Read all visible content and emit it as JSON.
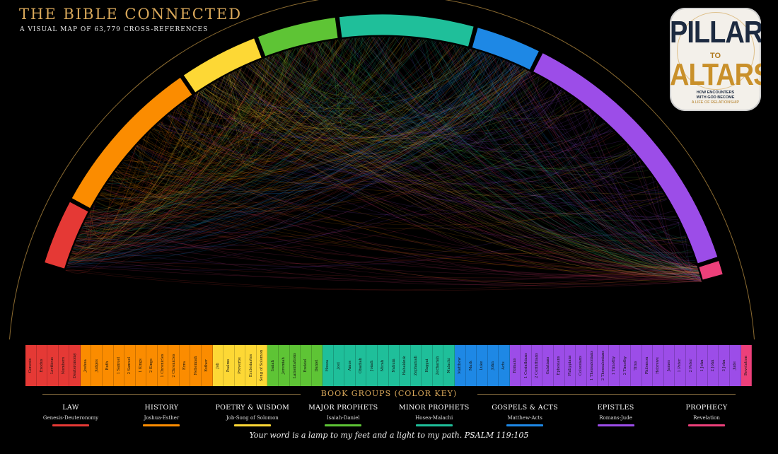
{
  "header": {
    "title": "THE BIBLE CONNECTED",
    "subtitle": "A VISUAL MAP OF 63,779 CROSS-REFERENCES"
  },
  "logo": {
    "line1": "PILLARS",
    "line2": "TO",
    "line3": "ALTARS",
    "tag1": "HOW ENCOUNTERS",
    "tag2": "WITH GOD BECOME",
    "tag3": "A LIFE OF RELATIONSHIP"
  },
  "colors": {
    "law": "#e53935",
    "history": "#fb8c00",
    "poetry": "#fdd835",
    "major": "#5ec435",
    "minor": "#1fbf9a",
    "gospels": "#1e88e5",
    "epistles": "#9c4de8",
    "prophecy": "#ec407a",
    "gold": "#d9a85a"
  },
  "books": [
    {
      "name": "Genesis",
      "group": "law"
    },
    {
      "name": "Exodus",
      "group": "law"
    },
    {
      "name": "Leviticus",
      "group": "law"
    },
    {
      "name": "Numbers",
      "group": "law"
    },
    {
      "name": "Deuteronomy",
      "group": "law"
    },
    {
      "name": "Joshua",
      "group": "history"
    },
    {
      "name": "Judges",
      "group": "history"
    },
    {
      "name": "Ruth",
      "group": "history"
    },
    {
      "name": "1 Samuel",
      "group": "history"
    },
    {
      "name": "2 Samuel",
      "group": "history"
    },
    {
      "name": "1 Kings",
      "group": "history"
    },
    {
      "name": "2 Kings",
      "group": "history"
    },
    {
      "name": "1 Chronicles",
      "group": "history"
    },
    {
      "name": "2 Chronicles",
      "group": "history"
    },
    {
      "name": "Ezra",
      "group": "history"
    },
    {
      "name": "Nehemiah",
      "group": "history"
    },
    {
      "name": "Esther",
      "group": "history"
    },
    {
      "name": "Job",
      "group": "poetry"
    },
    {
      "name": "Psalms",
      "group": "poetry"
    },
    {
      "name": "Proverbs",
      "group": "poetry"
    },
    {
      "name": "Ecclesiastes",
      "group": "poetry"
    },
    {
      "name": "Song of Solomon",
      "group": "poetry"
    },
    {
      "name": "Isaiah",
      "group": "major"
    },
    {
      "name": "Jeremiah",
      "group": "major"
    },
    {
      "name": "Lamentations",
      "group": "major"
    },
    {
      "name": "Ezekiel",
      "group": "major"
    },
    {
      "name": "Daniel",
      "group": "major"
    },
    {
      "name": "Hosea",
      "group": "minor"
    },
    {
      "name": "Joel",
      "group": "minor"
    },
    {
      "name": "Amos",
      "group": "minor"
    },
    {
      "name": "Obadiah",
      "group": "minor"
    },
    {
      "name": "Jonah",
      "group": "minor"
    },
    {
      "name": "Micah",
      "group": "minor"
    },
    {
      "name": "Nahum",
      "group": "minor"
    },
    {
      "name": "Habakkuk",
      "group": "minor"
    },
    {
      "name": "Zephaniah",
      "group": "minor"
    },
    {
      "name": "Haggai",
      "group": "minor"
    },
    {
      "name": "Zechariah",
      "group": "minor"
    },
    {
      "name": "Malachi",
      "group": "minor"
    },
    {
      "name": "Matthew",
      "group": "gospels"
    },
    {
      "name": "Mark",
      "group": "gospels"
    },
    {
      "name": "Luke",
      "group": "gospels"
    },
    {
      "name": "John",
      "group": "gospels"
    },
    {
      "name": "Acts",
      "group": "gospels"
    },
    {
      "name": "Romans",
      "group": "epistles"
    },
    {
      "name": "1 Corinthians",
      "group": "epistles"
    },
    {
      "name": "2 Corinthians",
      "group": "epistles"
    },
    {
      "name": "Galatians",
      "group": "epistles"
    },
    {
      "name": "Ephesians",
      "group": "epistles"
    },
    {
      "name": "Philippians",
      "group": "epistles"
    },
    {
      "name": "Colossians",
      "group": "epistles"
    },
    {
      "name": "1 Thessalonians",
      "group": "epistles"
    },
    {
      "name": "2 Thessalonians",
      "group": "epistles"
    },
    {
      "name": "1 Timothy",
      "group": "epistles"
    },
    {
      "name": "2 Timothy",
      "group": "epistles"
    },
    {
      "name": "Titus",
      "group": "epistles"
    },
    {
      "name": "Philemon",
      "group": "epistles"
    },
    {
      "name": "Hebrews",
      "group": "epistles"
    },
    {
      "name": "James",
      "group": "epistles"
    },
    {
      "name": "1 Peter",
      "group": "epistles"
    },
    {
      "name": "2 Peter",
      "group": "epistles"
    },
    {
      "name": "1 John",
      "group": "epistles"
    },
    {
      "name": "2 John",
      "group": "epistles"
    },
    {
      "name": "3 John",
      "group": "epistles"
    },
    {
      "name": "Jude",
      "group": "epistles"
    },
    {
      "name": "Revelation",
      "group": "prophecy"
    }
  ],
  "key": {
    "title": "BOOK GROUPS (COLOR KEY)",
    "groups": [
      {
        "id": "law",
        "name": "LAW",
        "range": "Genesis-Deuteronomy"
      },
      {
        "id": "history",
        "name": "HISTORY",
        "range": "Joshua-Esther"
      },
      {
        "id": "poetry",
        "name": "POETRY & WISDOM",
        "range": "Job-Song of Solomon"
      },
      {
        "id": "major",
        "name": "MAJOR PROPHETS",
        "range": "Isaiah-Daniel"
      },
      {
        "id": "minor",
        "name": "MINOR PROPHETS",
        "range": "Hosea-Malachi"
      },
      {
        "id": "gospels",
        "name": "GOSPELS & ACTS",
        "range": "Matthew-Acts"
      },
      {
        "id": "epistles",
        "name": "EPISTLES",
        "range": "Romans-Jude"
      },
      {
        "id": "prophecy",
        "name": "PROPHECY",
        "range": "Revelation"
      }
    ]
  },
  "verse": "Your word is a lamp to my feet and a light to my path. PSALM 119:105"
}
